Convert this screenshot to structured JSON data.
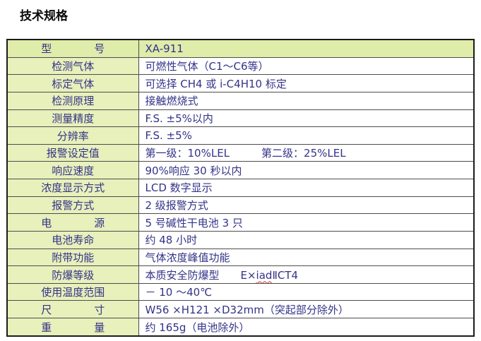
{
  "page": {
    "title": "技术规格"
  },
  "colors": {
    "header_bg": "#dfecaa",
    "label_bg": "#e8f0bb",
    "text": "#333388",
    "border_outer": "#1c1c1c",
    "border_inner": "#4d4d4d",
    "squiggle": "#e03030"
  },
  "table": {
    "rows": [
      {
        "label": "型　　　　号",
        "value": "XA-911"
      },
      {
        "label": "检测气体",
        "value": "可燃性气体（C1～C6等）"
      },
      {
        "label": "标定气体",
        "value": "可选择 CH4 或 i-C4H10 标定"
      },
      {
        "label": "检测原理",
        "value": "接触燃烧式"
      },
      {
        "label": "测量精度",
        "value": "F.S. ±5%以内"
      },
      {
        "label": "分辨率",
        "value": "F.S. ±5%"
      },
      {
        "label": "报警设定值",
        "value": "第一级：10%LEL　　　第二级：25%LEL"
      },
      {
        "label": "响应速度",
        "value": "90%响应 30 秒以内"
      },
      {
        "label": "浓度显示方式",
        "value": "LCD 数字显示"
      },
      {
        "label": "报警方式",
        "value": "2 级报警方式"
      },
      {
        "label": "电　　　　源",
        "value": "5 号碱性干电池 3 只"
      },
      {
        "label": "电池寿命",
        "value": "约 48 小时"
      },
      {
        "label": "附带功能",
        "value": "气体浓度峰值功能"
      },
      {
        "label": "防爆等级",
        "value_parts": {
          "prefix": "本质安全防爆型　　E×",
          "misspell": "iad",
          "suffix": "ⅡCT4"
        }
      },
      {
        "label": "使用温度范围",
        "value": "－ 10 ～40℃"
      },
      {
        "label": "尺　　　　寸",
        "value": "W56 ×H121 ×D32mm（突起部分除外）"
      },
      {
        "label": "重　　　　量",
        "value": "约 165g（电池除外）"
      }
    ]
  }
}
